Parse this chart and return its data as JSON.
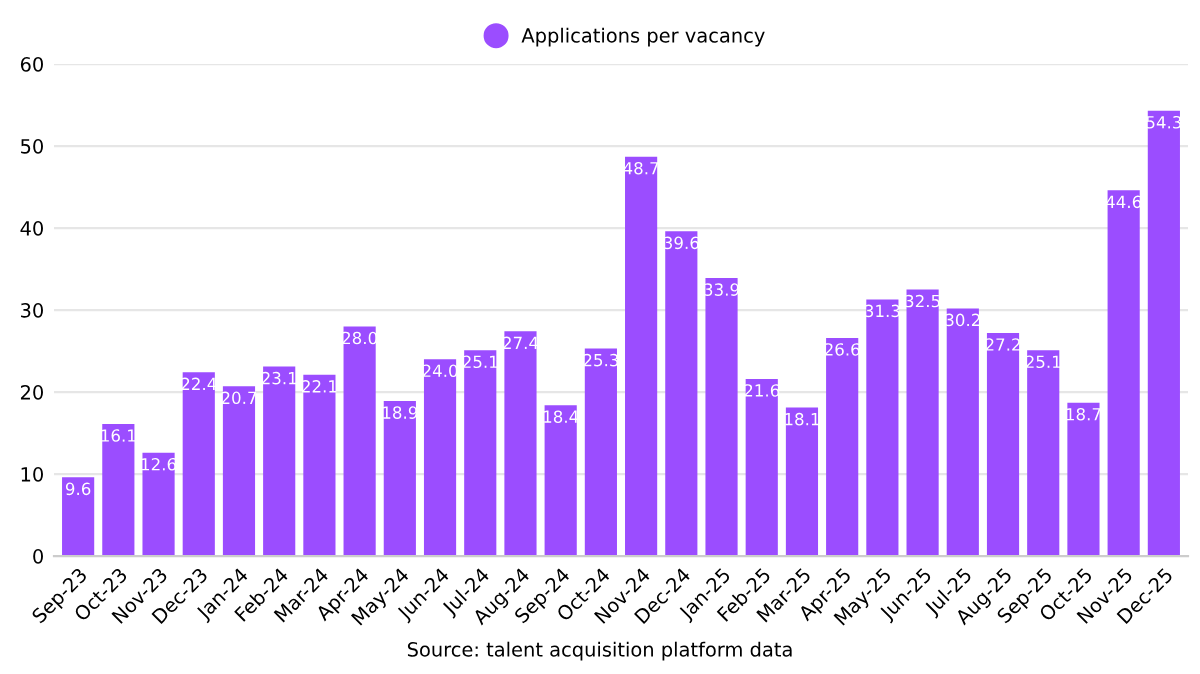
{
  "chart_data": {
    "type": "bar",
    "categories": [
      "Sep-23",
      "Oct-23",
      "Nov-23",
      "Dec-23",
      "Jan-24",
      "Feb-24",
      "Mar-24",
      "Apr-24",
      "May-24",
      "Jun-24",
      "Jul-24",
      "Aug-24",
      "Sep-24",
      "Oct-24",
      "Nov-24",
      "Dec-24",
      "Jan-25",
      "Feb-25",
      "Mar-25",
      "Apr-25",
      "May-25",
      "Jun-25",
      "Jul-25",
      "Aug-25",
      "Sep-25",
      "Oct-25",
      "Nov-25",
      "Dec-25"
    ],
    "series": [
      {
        "name": "Applications per vacancy",
        "color": "#9b4dff",
        "values": [
          9.6,
          16.1,
          12.6,
          22.4,
          20.7,
          23.1,
          22.1,
          28.0,
          18.9,
          24.0,
          25.1,
          27.4,
          18.4,
          25.3,
          48.7,
          39.6,
          33.9,
          21.6,
          18.1,
          26.6,
          31.3,
          32.5,
          30.2,
          27.2,
          25.1,
          18.7,
          44.6,
          54.3
        ],
        "value_labels": [
          "9.6",
          "16.1",
          "12.6",
          "22.4",
          "20.7",
          "23.1",
          "22.1",
          "28.0",
          "18.9",
          "24.0",
          "25.1",
          "27.4",
          "18.4",
          "25.3",
          "48.7",
          "39.6",
          "33.9",
          "21.6",
          "18.1",
          "26.6",
          "31.3",
          "32.5",
          "30.2",
          "27.2",
          "25.1",
          "18.7",
          "44.6",
          "54.3"
        ]
      }
    ],
    "ylim": [
      0,
      60
    ],
    "yticks": [
      0,
      10,
      20,
      30,
      40,
      50,
      60
    ],
    "grid": "y",
    "legend": "top",
    "annotations": [
      "Source: talent acquisition platform data"
    ]
  }
}
